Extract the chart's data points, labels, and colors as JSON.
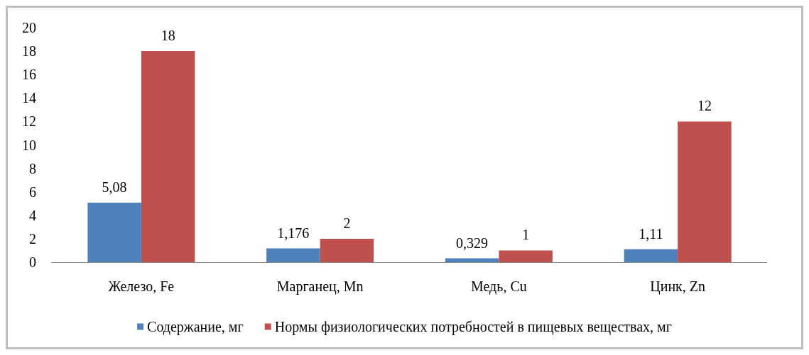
{
  "chart_data": {
    "type": "bar",
    "categories": [
      "Железо, Fe",
      "Марганец, Mn",
      "Медь, Cu",
      "Цинк, Zn"
    ],
    "series": [
      {
        "name": "Содержание, мг",
        "color": "#4f81bd",
        "values": [
          5.08,
          1.176,
          0.329,
          1.11
        ],
        "value_labels": [
          "5,08",
          "1,176",
          "0,329",
          "1,11"
        ]
      },
      {
        "name": "Нормы физиологических потребностей в пищевых веществах, мг",
        "color": "#c0504d",
        "values": [
          18,
          2,
          1,
          12
        ],
        "value_labels": [
          "18",
          "2",
          "1",
          "12"
        ]
      }
    ],
    "ylim": [
      0,
      20
    ],
    "yticks": [
      0,
      2,
      4,
      6,
      8,
      10,
      12,
      14,
      16,
      18,
      20
    ],
    "grid": false,
    "legend": "bottom",
    "marker": "square"
  }
}
